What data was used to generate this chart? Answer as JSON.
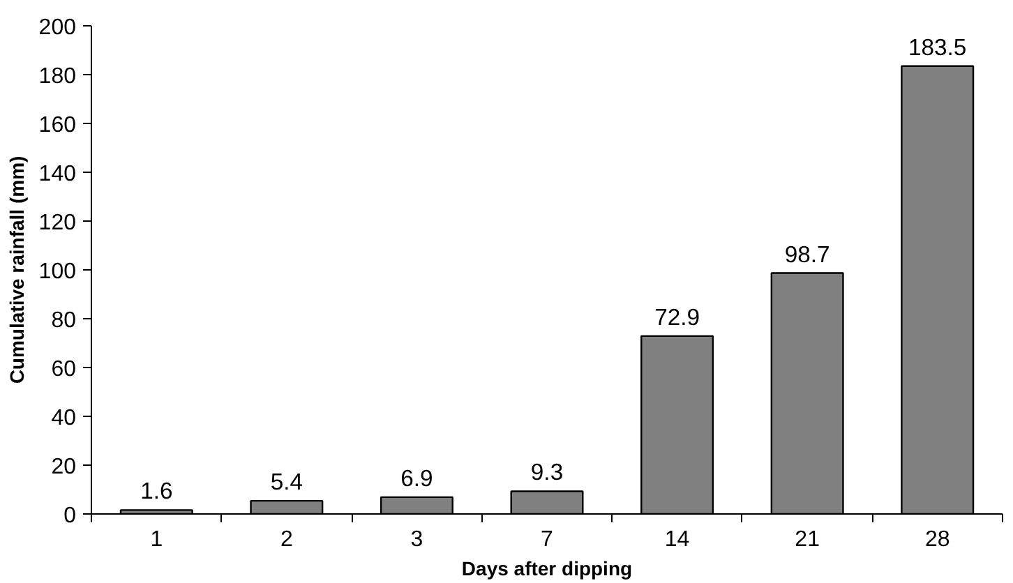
{
  "chart_data": {
    "type": "bar",
    "xlabel": "Days after dipping",
    "ylabel": "Cumulative rainfall (mm)",
    "categories": [
      "1",
      "2",
      "3",
      "7",
      "14",
      "21",
      "28"
    ],
    "values": [
      1.6,
      5.4,
      6.9,
      9.3,
      72.9,
      98.7,
      183.5
    ],
    "color": "#808080",
    "ylim": [
      0,
      200
    ],
    "yticks": [
      0,
      20,
      40,
      60,
      80,
      100,
      120,
      140,
      160,
      180,
      200
    ],
    "data_labels": true,
    "grid": false
  }
}
